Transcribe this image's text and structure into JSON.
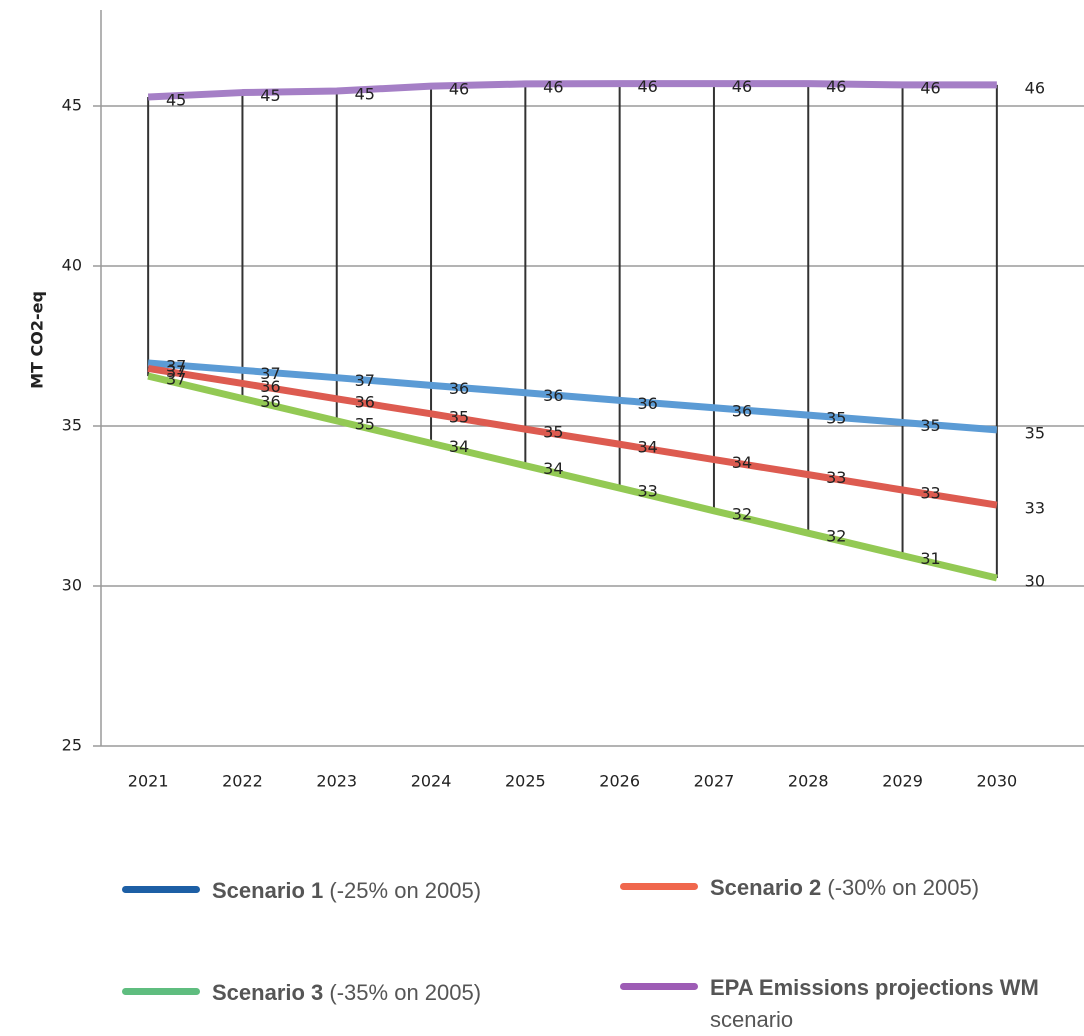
{
  "chart_data": {
    "type": "line",
    "y_label": "MT CO2-eq",
    "categories": [
      "2021",
      "2022",
      "2023",
      "2024",
      "2025",
      "2026",
      "2027",
      "2028",
      "2029",
      "2030"
    ],
    "ylim": [
      25,
      48
    ],
    "yticks": [
      25,
      30,
      35,
      40,
      45
    ],
    "grid": true,
    "high_low_lines": true,
    "series": [
      {
        "name": "Scenario 1",
        "note": "(-25% on 2005)",
        "color": "#5b9bd5",
        "legend_color": "#1d5fa5",
        "values": [
          36.97,
          36.74,
          36.51,
          36.27,
          36.04,
          35.8,
          35.57,
          35.34,
          35.11,
          34.88
        ],
        "value_labels": [
          37,
          37,
          37,
          36,
          36,
          36,
          36,
          35,
          35,
          35
        ]
      },
      {
        "name": "Scenario 2",
        "note": "(-30% on 2005)",
        "color": "#dd5b50",
        "legend_color": "#f0674d",
        "values": [
          36.8,
          36.33,
          35.85,
          35.38,
          34.9,
          34.43,
          33.95,
          33.48,
          33.0,
          32.53
        ],
        "value_labels": [
          37,
          36,
          36,
          35,
          35,
          34,
          34,
          33,
          33,
          33
        ]
      },
      {
        "name": "Scenario 3",
        "note": "(-35% on 2005)",
        "color": "#93c954",
        "legend_color": "#5fbd7f",
        "values": [
          36.56,
          35.86,
          35.16,
          34.46,
          33.76,
          33.06,
          32.35,
          31.65,
          30.95,
          30.25
        ],
        "value_labels": [
          37,
          36,
          35,
          34,
          34,
          33,
          32,
          32,
          31,
          30
        ]
      },
      {
        "name": "EPA Emissions projections WM",
        "note": "scenario",
        "color": "#a57fc6",
        "legend_color": "#9d5cb5",
        "values": [
          45.28,
          45.42,
          45.47,
          45.62,
          45.69,
          45.7,
          45.7,
          45.7,
          45.66,
          45.66
        ],
        "value_labels": [
          45,
          45,
          45,
          46,
          46,
          46,
          46,
          46,
          46,
          46
        ]
      }
    ]
  }
}
